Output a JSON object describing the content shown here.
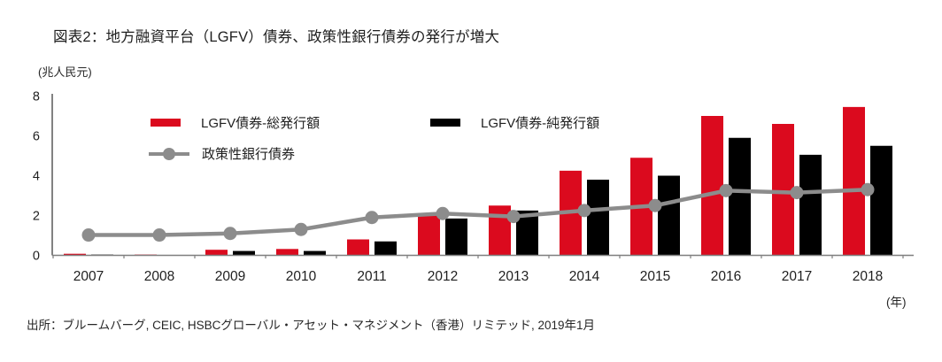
{
  "title": "図表2：地方融資平台（LGFV）債券、政策性銀行債券の発行が増大",
  "source": "出所：ブルームバーグ, CEIC, HSBCグローバル・アセット・マネジメント（香港）リミテッド, 2019年1月",
  "colors": {
    "total_bar": "#db0a1e",
    "net_bar": "#000000",
    "policy_line": "#8c8c8c",
    "axis": "#7f7f7f",
    "y_axis": "#4d4d4d",
    "text": "#1f1f1f"
  },
  "chart_data": {
    "type": "bar+line",
    "title": "図表2：地方融資平台（LGFV）債券、政策性銀行債券の発行が増大",
    "ylabel_unit": "(兆人民元)",
    "xlabel_unit": "(年)",
    "ylim": [
      0,
      8
    ],
    "yticks": [
      0,
      2,
      4,
      6,
      8
    ],
    "grid": false,
    "legend_position": "top-inside",
    "categories": [
      "2007",
      "2008",
      "2009",
      "2010",
      "2011",
      "2012",
      "2013",
      "2014",
      "2015",
      "2016",
      "2017",
      "2018"
    ],
    "series": [
      {
        "name": "LGFV債券-総発行額",
        "type": "bar",
        "color": "#db0a1e",
        "values": [
          0.08,
          0.04,
          0.28,
          0.32,
          0.8,
          2.0,
          2.5,
          4.25,
          4.9,
          7.0,
          6.6,
          7.45
        ]
      },
      {
        "name": "LGFV債券-純発行額",
        "type": "bar",
        "color": "#000000",
        "values": [
          0.04,
          0.02,
          0.22,
          0.22,
          0.7,
          1.85,
          2.25,
          3.8,
          4.0,
          5.9,
          5.05,
          5.5
        ]
      },
      {
        "name": "政策性銀行債券",
        "type": "line",
        "color": "#8c8c8c",
        "values": [
          1.02,
          1.02,
          1.1,
          1.3,
          1.9,
          2.1,
          1.95,
          2.25,
          2.5,
          3.25,
          3.15,
          3.3
        ]
      }
    ]
  }
}
